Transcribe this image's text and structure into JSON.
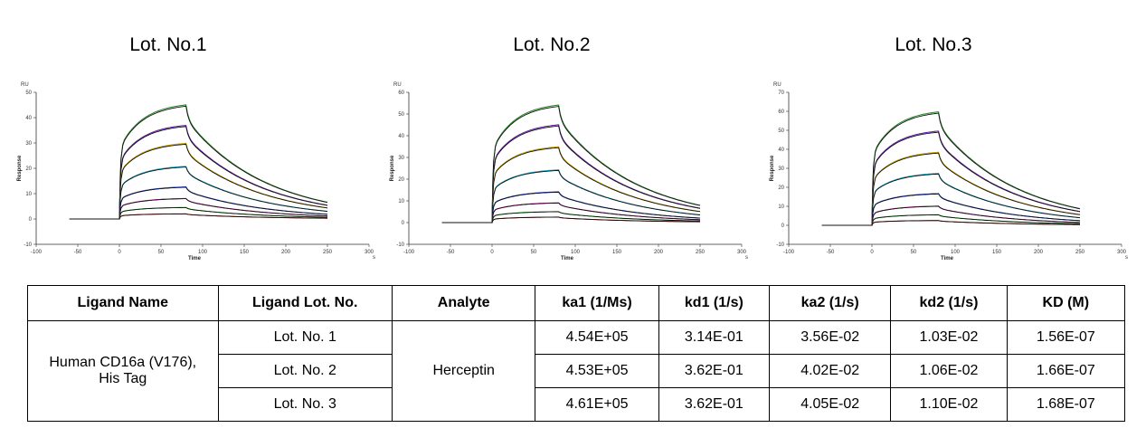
{
  "chart_data": [
    {
      "type": "line",
      "title": "Lot. No.1",
      "xlabel": "Time",
      "ylabel": "Response",
      "yunit": "RU",
      "xunit": "s",
      "xlim": [
        -100,
        300
      ],
      "ylim": [
        -10,
        50
      ],
      "xticks": [
        "-100",
        "-50",
        "0",
        "50",
        "100",
        "150",
        "200",
        "250",
        "300"
      ],
      "yticks": [
        "-10",
        "0",
        "10",
        "20",
        "30",
        "40",
        "50"
      ],
      "series": [
        {
          "plateau": 44.5,
          "color": "#2e8b2e"
        },
        {
          "plateau": 36.5,
          "color": "#6a1fa8"
        },
        {
          "plateau": 29.5,
          "color": "#c8a000"
        },
        {
          "plateau": 20.5,
          "color": "#1aa7c7"
        },
        {
          "plateau": 12.5,
          "color": "#1a3fd0"
        },
        {
          "plateau": 8.0,
          "color": "#c81fa8"
        },
        {
          "plateau": 4.5,
          "color": "#1fc81f"
        },
        {
          "plateau": 2.0,
          "color": "#d01f1f"
        }
      ]
    },
    {
      "type": "line",
      "title": "Lot. No.2",
      "xlabel": "Time",
      "ylabel": "Response",
      "yunit": "RU",
      "xunit": "s",
      "xlim": [
        -100,
        300
      ],
      "ylim": [
        -10,
        60
      ],
      "xticks": [
        "-100",
        "-50",
        "0",
        "50",
        "100",
        "150",
        "200",
        "250",
        "300"
      ],
      "yticks": [
        "-10",
        "0",
        "10",
        "20",
        "30",
        "40",
        "50",
        "60"
      ],
      "series": [
        {
          "plateau": 53.5,
          "color": "#2e8b2e"
        },
        {
          "plateau": 44.5,
          "color": "#6a1fa8"
        },
        {
          "plateau": 34.5,
          "color": "#c8a000"
        },
        {
          "plateau": 24.0,
          "color": "#1aa7c7"
        },
        {
          "plateau": 14.0,
          "color": "#1a3fd0"
        },
        {
          "plateau": 9.0,
          "color": "#c81fa8"
        },
        {
          "plateau": 5.0,
          "color": "#1fc81f"
        },
        {
          "plateau": 2.5,
          "color": "#d01f1f"
        }
      ]
    },
    {
      "type": "line",
      "title": "Lot. No.3",
      "xlabel": "Time",
      "ylabel": "Response",
      "yunit": "RU",
      "xunit": "s",
      "xlim": [
        -100,
        300
      ],
      "ylim": [
        -10,
        70
      ],
      "xticks": [
        "-100",
        "-50",
        "0",
        "50",
        "100",
        "150",
        "200",
        "250",
        "300"
      ],
      "yticks": [
        "-10",
        "0",
        "10",
        "20",
        "30",
        "40",
        "50",
        "60",
        "70"
      ],
      "series": [
        {
          "plateau": 59.0,
          "color": "#2e8b2e"
        },
        {
          "plateau": 49.0,
          "color": "#6a1fa8"
        },
        {
          "plateau": 38.0,
          "color": "#c8a000"
        },
        {
          "plateau": 27.0,
          "color": "#1aa7c7"
        },
        {
          "plateau": 16.5,
          "color": "#1a3fd0"
        },
        {
          "plateau": 10.0,
          "color": "#c81fa8"
        },
        {
          "plateau": 5.5,
          "color": "#1fc81f"
        },
        {
          "plateau": 2.5,
          "color": "#d01f1f"
        }
      ]
    }
  ],
  "table": {
    "headers": [
      "Ligand Name",
      "Ligand Lot. No.",
      "Analyte",
      "ka1 (1/Ms)",
      "kd1 (1/s)",
      "ka2 (1/s)",
      "kd2 (1/s)",
      "KD (M)"
    ],
    "ligand_name": "Human CD16a (V176), His Tag",
    "analyte": "Herceptin",
    "rows": [
      {
        "lot": "Lot. No. 1",
        "ka1": "4.54E+05",
        "kd1": "3.14E-01",
        "ka2": "3.56E-02",
        "kd2": "1.03E-02",
        "kd": "1.56E-07"
      },
      {
        "lot": "Lot. No. 2",
        "ka1": "4.53E+05",
        "kd1": "3.62E-01",
        "ka2": "4.02E-02",
        "kd2": "1.06E-02",
        "kd": "1.66E-07"
      },
      {
        "lot": "Lot. No. 3",
        "ka1": "4.61E+05",
        "kd1": "3.62E-01",
        "ka2": "4.05E-02",
        "kd2": "1.10E-02",
        "kd": "1.68E-07"
      }
    ]
  }
}
